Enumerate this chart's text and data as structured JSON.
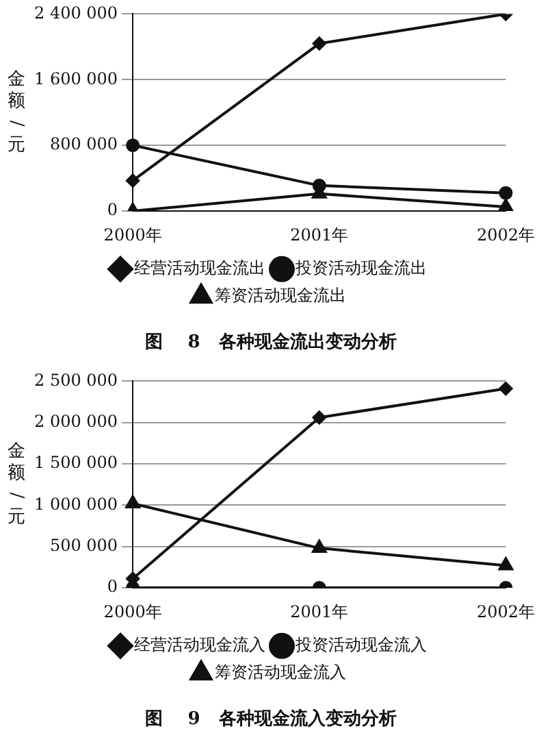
{
  "chart_data": [
    {
      "type": "line",
      "title": "图    8   各种现金流出变动分析",
      "ylabel": "金额/元",
      "categories": [
        "2000年",
        "2001年",
        "2002年"
      ],
      "series": [
        {
          "name": "经营活动现金流出",
          "color": "#111111",
          "marker": "diamond",
          "values": [
            370000,
            2040000,
            2400000
          ]
        },
        {
          "name": "投资活动现金流出",
          "color": "#111111",
          "marker": "circle",
          "values": [
            800000,
            310000,
            220000
          ]
        },
        {
          "name": "筹资活动现金流出",
          "color": "#111111",
          "marker": "triangle",
          "values": [
            0,
            210000,
            50000
          ]
        }
      ],
      "ylim": [
        0,
        2400000
      ],
      "yticks": [
        0,
        {
          "value": 800000,
          "label": "800 000"
        },
        {
          "value": 1600000,
          "label": "1 600 000"
        },
        {
          "value": 2400000,
          "label": "2 400 000"
        }
      ],
      "grid": "y",
      "legend": "bottom"
    },
    {
      "type": "line",
      "title": "图    9   各种现金流入变动分析",
      "ylabel": "金额/元",
      "categories": [
        "2000年",
        "2001年",
        "2002年"
      ],
      "series": [
        {
          "name": "经营活动现金流入",
          "color": "#111111",
          "marker": "diamond",
          "values": [
            110000,
            2060000,
            2410000
          ]
        },
        {
          "name": "投资活动现金流入",
          "color": "#111111",
          "marker": "circle",
          "values": [
            0,
            0,
            0
          ]
        },
        {
          "name": "筹资活动现金流入",
          "color": "#111111",
          "marker": "triangle",
          "values": [
            1020000,
            480000,
            270000
          ]
        }
      ],
      "ylim": [
        0,
        2500000
      ],
      "yticks": [
        0,
        {
          "value": 500000,
          "label": "500 000"
        },
        {
          "value": 1000000,
          "label": "1 000 000"
        },
        {
          "value": 1500000,
          "label": "1 500 000"
        },
        {
          "value": 2000000,
          "label": "2 000 000"
        },
        {
          "value": 2500000,
          "label": "2 500 000"
        }
      ],
      "grid": "y",
      "legend": "bottom"
    }
  ]
}
